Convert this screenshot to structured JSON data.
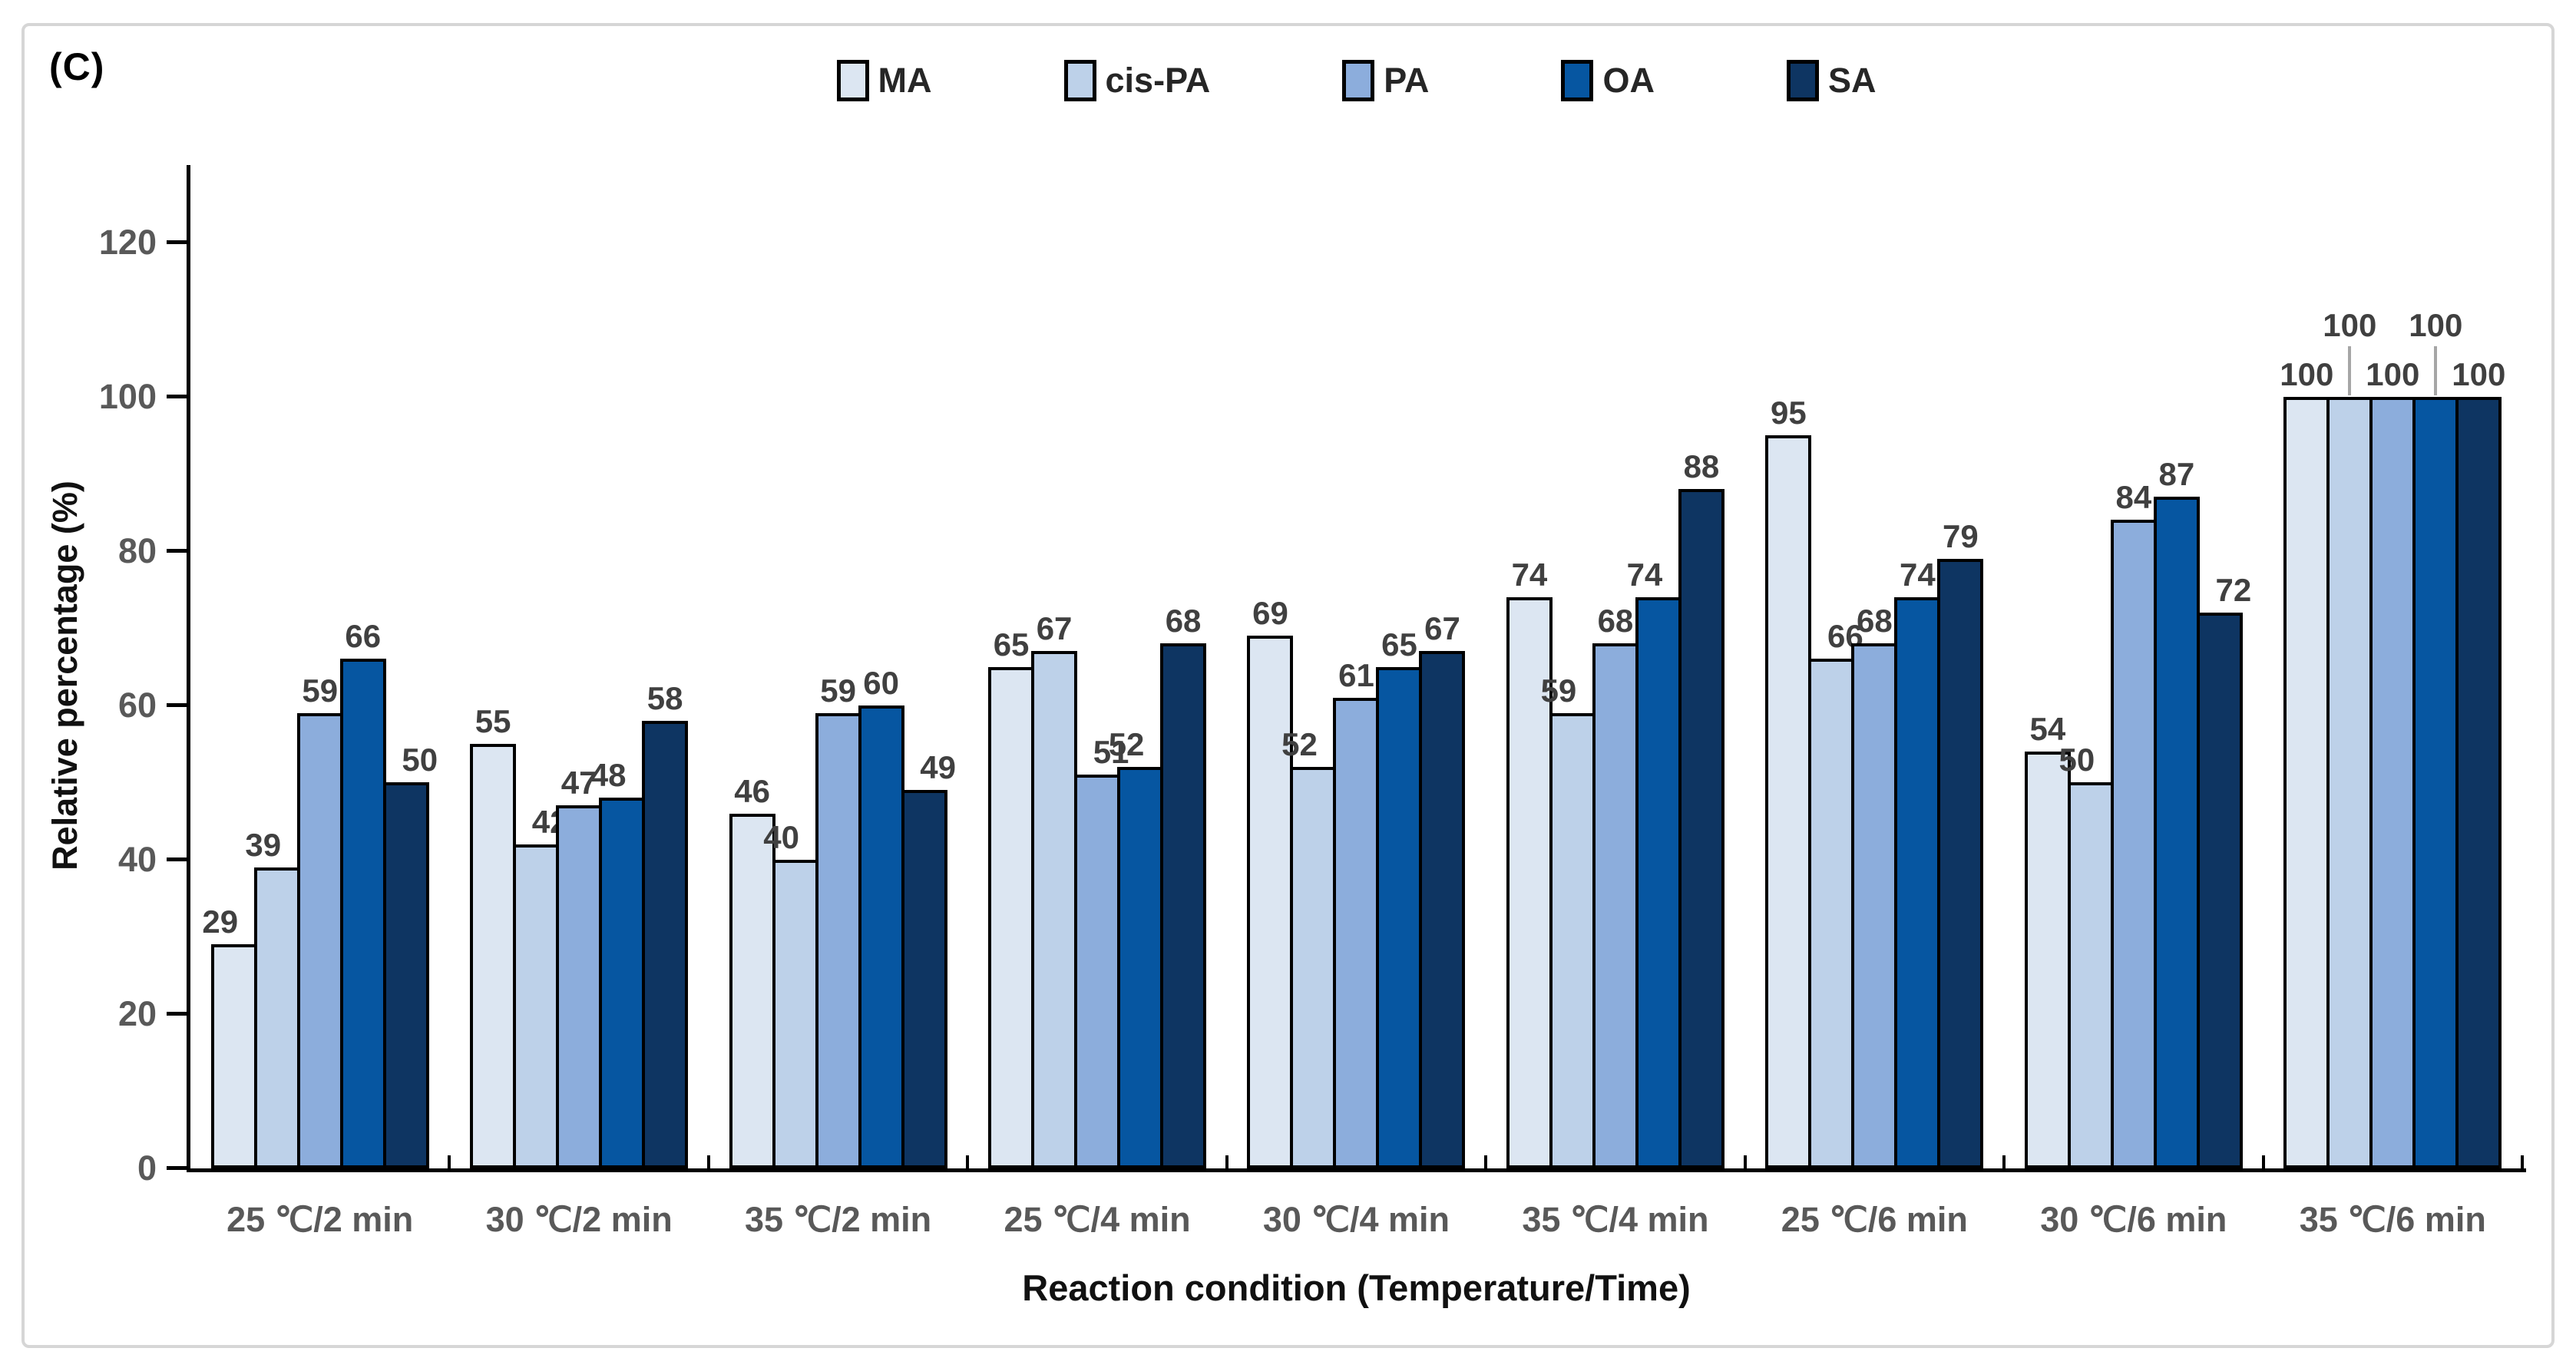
{
  "figure": {
    "panel_label": "(C)"
  },
  "chart_data": {
    "type": "bar",
    "title": "(C)",
    "ylabel": "Relative percentage (%)",
    "xlabel": "Reaction condition (Temperature/Time)",
    "ylim": [
      0,
      130
    ],
    "yticks": [
      0,
      20,
      40,
      60,
      80,
      100,
      120
    ],
    "grid": false,
    "legend_position": "top-center",
    "bar_outline_color": "#000000",
    "value_labels_shown": true,
    "categories": [
      "25 ℃/2 min",
      "30 ℃/2 min",
      "35 ℃/2 min",
      "25 ℃/4 min",
      "30 ℃/4 min",
      "35 ℃/4 min",
      "25 ℃/6 min",
      "30 ℃/6 min",
      "35 ℃/6 min"
    ],
    "series": [
      {
        "name": "MA",
        "color": "#dce6f2",
        "values": [
          29,
          55,
          46,
          65,
          69,
          74,
          95,
          54,
          100
        ]
      },
      {
        "name": "cis-PA",
        "color": "#bdd1e9",
        "values": [
          39,
          42,
          40,
          67,
          52,
          59,
          66,
          50,
          100
        ]
      },
      {
        "name": "PA",
        "color": "#8caddc",
        "values": [
          59,
          47,
          59,
          51,
          61,
          68,
          68,
          84,
          100
        ]
      },
      {
        "name": "OA",
        "color": "#0656a1",
        "values": [
          66,
          48,
          60,
          52,
          65,
          74,
          74,
          87,
          100
        ]
      },
      {
        "name": "SA",
        "color": "#0e3562",
        "values": [
          50,
          58,
          49,
          68,
          67,
          88,
          79,
          72,
          100
        ]
      }
    ]
  }
}
